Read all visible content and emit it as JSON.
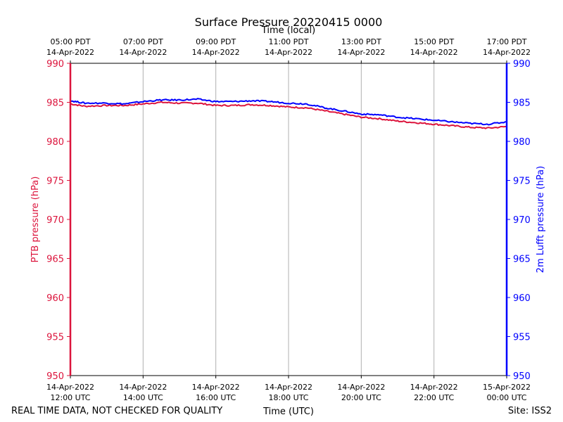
{
  "chart_data": {
    "type": "line",
    "title": "Surface Pressure 20220415 0000",
    "xlabel": "Time (UTC)",
    "xlabel_top": "Time (local)",
    "ylabel_left": "PTB pressure (hPa)",
    "ylabel_right": "2m Lufft pressure (hPa)",
    "ylim": [
      950,
      990
    ],
    "y_ticks": [
      950,
      955,
      960,
      965,
      970,
      975,
      980,
      985,
      990
    ],
    "x_range_hours": [
      12,
      24
    ],
    "x_ticks_bottom": [
      {
        "hour": 12,
        "line1": "14-Apr-2022",
        "line2": "12:00 UTC"
      },
      {
        "hour": 14,
        "line1": "14-Apr-2022",
        "line2": "14:00 UTC"
      },
      {
        "hour": 16,
        "line1": "14-Apr-2022",
        "line2": "16:00 UTC"
      },
      {
        "hour": 18,
        "line1": "14-Apr-2022",
        "line2": "18:00 UTC"
      },
      {
        "hour": 20,
        "line1": "14-Apr-2022",
        "line2": "20:00 UTC"
      },
      {
        "hour": 22,
        "line1": "14-Apr-2022",
        "line2": "22:00 UTC"
      },
      {
        "hour": 24,
        "line1": "15-Apr-2022",
        "line2": "00:00 UTC"
      }
    ],
    "x_ticks_top": [
      {
        "hour": 12,
        "line1": "05:00 PDT",
        "line2": "14-Apr-2022"
      },
      {
        "hour": 14,
        "line1": "07:00 PDT",
        "line2": "14-Apr-2022"
      },
      {
        "hour": 16,
        "line1": "09:00 PDT",
        "line2": "14-Apr-2022"
      },
      {
        "hour": 18,
        "line1": "11:00 PDT",
        "line2": "14-Apr-2022"
      },
      {
        "hour": 20,
        "line1": "13:00 PDT",
        "line2": "14-Apr-2022"
      },
      {
        "hour": 22,
        "line1": "15:00 PDT",
        "line2": "14-Apr-2022"
      },
      {
        "hour": 24,
        "line1": "17:00 PDT",
        "line2": "14-Apr-2022"
      }
    ],
    "series": [
      {
        "name": "PTB pressure",
        "axis": "left",
        "color": "#dc143c",
        "x": [
          12.0,
          12.4,
          13.0,
          13.5,
          14.0,
          14.5,
          15.0,
          15.5,
          16.0,
          16.5,
          17.0,
          17.5,
          18.0,
          18.5,
          19.0,
          19.5,
          20.0,
          20.5,
          21.0,
          21.5,
          22.0,
          22.5,
          23.0,
          23.5,
          24.0
        ],
        "values": [
          984.8,
          984.5,
          984.6,
          984.6,
          984.8,
          985.0,
          984.9,
          984.9,
          984.6,
          984.6,
          984.7,
          984.6,
          984.4,
          984.3,
          983.9,
          983.5,
          983.1,
          982.9,
          982.6,
          982.4,
          982.2,
          982.0,
          981.8,
          981.7,
          981.9
        ]
      },
      {
        "name": "2m Lufft pressure",
        "axis": "right",
        "color": "#0000ff",
        "x": [
          12.0,
          12.4,
          13.0,
          13.5,
          14.0,
          14.5,
          15.0,
          15.5,
          16.0,
          16.5,
          17.0,
          17.5,
          18.0,
          18.5,
          19.0,
          19.5,
          20.0,
          20.5,
          21.0,
          21.5,
          22.0,
          22.5,
          23.0,
          23.5,
          24.0
        ],
        "values": [
          985.2,
          984.9,
          984.9,
          984.8,
          985.1,
          985.3,
          985.3,
          985.4,
          985.1,
          985.1,
          985.2,
          985.1,
          984.9,
          984.8,
          984.3,
          983.9,
          983.5,
          983.4,
          983.1,
          982.9,
          982.7,
          982.5,
          982.3,
          982.2,
          982.5
        ]
      }
    ]
  },
  "footer": {
    "left_note": "REAL TIME DATA, NOT CHECKED FOR QUALITY",
    "site": "Site: ISS2"
  }
}
